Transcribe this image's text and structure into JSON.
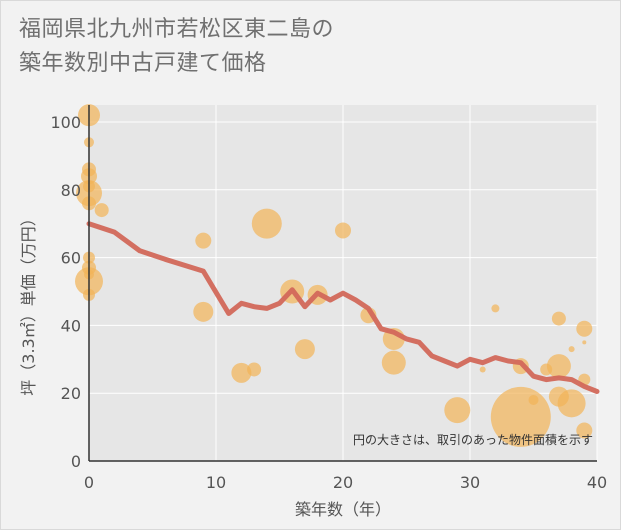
{
  "title_lines": [
    "福岡県北九州市若松区東二島の",
    "築年数別中古戸建て価格"
  ],
  "chart_data": {
    "type": "scatter",
    "xlabel": "築年数（年）",
    "ylabel": "坪（3.3㎡）単価（万円）",
    "xlim": [
      0,
      40
    ],
    "ylim": [
      0,
      105
    ],
    "xticks": [
      0,
      10,
      20,
      30,
      40
    ],
    "yticks": [
      0,
      20,
      40,
      60,
      80,
      100
    ],
    "grid": true,
    "note": "円の大きさは、取引のあった物件面積を示す",
    "colors": {
      "bubble": "#f2b357",
      "line": "#d2685a",
      "grid": "#ffffff",
      "axis": "#333333"
    },
    "bubbles": [
      {
        "x": 0,
        "y": 102,
        "size": 11
      },
      {
        "x": 0,
        "y": 94,
        "size": 5
      },
      {
        "x": 0,
        "y": 86,
        "size": 7
      },
      {
        "x": 0,
        "y": 84,
        "size": 8
      },
      {
        "x": 0,
        "y": 81,
        "size": 6
      },
      {
        "x": 0,
        "y": 79,
        "size": 13
      },
      {
        "x": 0,
        "y": 76,
        "size": 7
      },
      {
        "x": 1,
        "y": 74,
        "size": 7
      },
      {
        "x": 0,
        "y": 60,
        "size": 6
      },
      {
        "x": 0,
        "y": 57,
        "size": 7
      },
      {
        "x": 0,
        "y": 55,
        "size": 5
      },
      {
        "x": 0,
        "y": 53,
        "size": 14
      },
      {
        "x": 0,
        "y": 49,
        "size": 6
      },
      {
        "x": 9,
        "y": 65,
        "size": 8
      },
      {
        "x": 9,
        "y": 44,
        "size": 10
      },
      {
        "x": 14,
        "y": 70,
        "size": 15
      },
      {
        "x": 12,
        "y": 26,
        "size": 10
      },
      {
        "x": 13,
        "y": 27,
        "size": 7
      },
      {
        "x": 16,
        "y": 50,
        "size": 12
      },
      {
        "x": 17,
        "y": 33,
        "size": 10
      },
      {
        "x": 18,
        "y": 49,
        "size": 10
      },
      {
        "x": 20,
        "y": 68,
        "size": 8
      },
      {
        "x": 22,
        "y": 43,
        "size": 8
      },
      {
        "x": 24,
        "y": 36,
        "size": 11
      },
      {
        "x": 24,
        "y": 29,
        "size": 12
      },
      {
        "x": 29,
        "y": 15,
        "size": 13
      },
      {
        "x": 31,
        "y": 27,
        "size": 3
      },
      {
        "x": 32,
        "y": 45,
        "size": 4
      },
      {
        "x": 34,
        "y": 13,
        "size": 30
      },
      {
        "x": 34,
        "y": 28,
        "size": 8
      },
      {
        "x": 35,
        "y": 18,
        "size": 5
      },
      {
        "x": 36,
        "y": 27,
        "size": 6
      },
      {
        "x": 37,
        "y": 42,
        "size": 7
      },
      {
        "x": 37,
        "y": 28,
        "size": 12
      },
      {
        "x": 37,
        "y": 19,
        "size": 10
      },
      {
        "x": 38,
        "y": 33,
        "size": 3
      },
      {
        "x": 38,
        "y": 17,
        "size": 14
      },
      {
        "x": 39,
        "y": 39,
        "size": 8
      },
      {
        "x": 39,
        "y": 35,
        "size": 2
      },
      {
        "x": 39,
        "y": 24,
        "size": 6
      },
      {
        "x": 39,
        "y": 9,
        "size": 8
      }
    ],
    "trend": [
      {
        "x": 0,
        "y": 70
      },
      {
        "x": 2,
        "y": 67.5
      },
      {
        "x": 4,
        "y": 62
      },
      {
        "x": 6,
        "y": 59.5
      },
      {
        "x": 9,
        "y": 56
      },
      {
        "x": 11,
        "y": 43.5
      },
      {
        "x": 12,
        "y": 46.5
      },
      {
        "x": 13,
        "y": 45.5
      },
      {
        "x": 14,
        "y": 45
      },
      {
        "x": 15,
        "y": 46.5
      },
      {
        "x": 16,
        "y": 50.5
      },
      {
        "x": 17,
        "y": 45.5
      },
      {
        "x": 18,
        "y": 49.5
      },
      {
        "x": 19,
        "y": 47.5
      },
      {
        "x": 20,
        "y": 49.5
      },
      {
        "x": 21,
        "y": 47.5
      },
      {
        "x": 22,
        "y": 45
      },
      {
        "x": 23,
        "y": 39
      },
      {
        "x": 24,
        "y": 38
      },
      {
        "x": 25,
        "y": 36
      },
      {
        "x": 26,
        "y": 35
      },
      {
        "x": 27,
        "y": 31
      },
      {
        "x": 28,
        "y": 29.5
      },
      {
        "x": 29,
        "y": 28
      },
      {
        "x": 30,
        "y": 30
      },
      {
        "x": 31,
        "y": 29
      },
      {
        "x": 32,
        "y": 30.5
      },
      {
        "x": 33,
        "y": 29.5
      },
      {
        "x": 34,
        "y": 29
      },
      {
        "x": 35,
        "y": 25
      },
      {
        "x": 36,
        "y": 24
      },
      {
        "x": 37,
        "y": 24.5
      },
      {
        "x": 38,
        "y": 24
      },
      {
        "x": 39,
        "y": 22
      },
      {
        "x": 40,
        "y": 20.5
      }
    ]
  }
}
